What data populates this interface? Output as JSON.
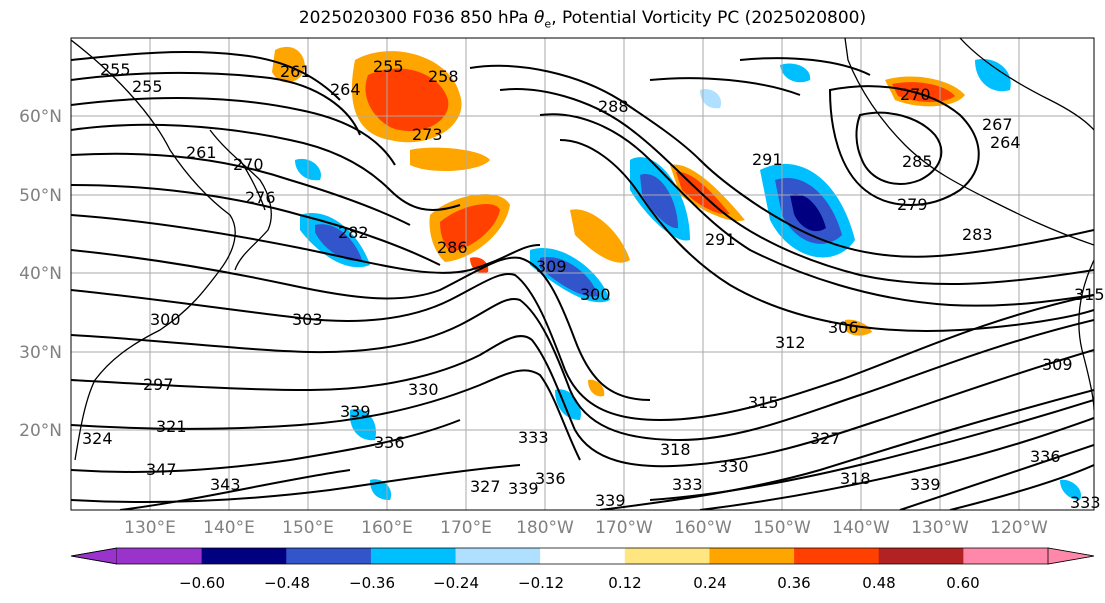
{
  "title": {
    "prefix": "2025020300 F036 850 hPa ",
    "symbol": "θ",
    "symbol_sub": "e",
    "suffix": ", Potential Vorticity PC (2025020800)"
  },
  "lat_labels": [
    "60°N",
    "50°N",
    "40°N",
    "30°N",
    "20°N"
  ],
  "lon_labels": [
    "130°E",
    "140°E",
    "150°E",
    "160°E",
    "170°E",
    "180°W",
    "170°W",
    "160°W",
    "150°W",
    "140°W",
    "130°W",
    "120°W"
  ],
  "colorbar": {
    "colors": [
      "#9933cc",
      "#000080",
      "#3355cc",
      "#00bfff",
      "#b0e0ff",
      "#ffffff",
      "#ffe680",
      "#ffa500",
      "#ff4000",
      "#b22222",
      "#ff88aa"
    ],
    "tick_labels": [
      "−0.60",
      "−0.48",
      "−0.36",
      "−0.24",
      "−0.12",
      "0.12",
      "0.24",
      "0.36",
      "0.48",
      "0.60"
    ]
  },
  "contour_labels": [
    "255",
    "255",
    "261",
    "264",
    "255",
    "258",
    "273",
    "261",
    "270",
    "276",
    "282",
    "286",
    "288",
    "291",
    "300",
    "303",
    "297",
    "300",
    "309",
    "312",
    "306",
    "315",
    "321",
    "324",
    "330",
    "339",
    "336",
    "333",
    "327",
    "330",
    "318",
    "339",
    "336",
    "333",
    "339",
    "327",
    "318",
    "339",
    "336",
    "347",
    "343",
    "285",
    "291",
    "279",
    "267",
    "264",
    "270",
    "283",
    "309",
    "315",
    "333"
  ]
}
